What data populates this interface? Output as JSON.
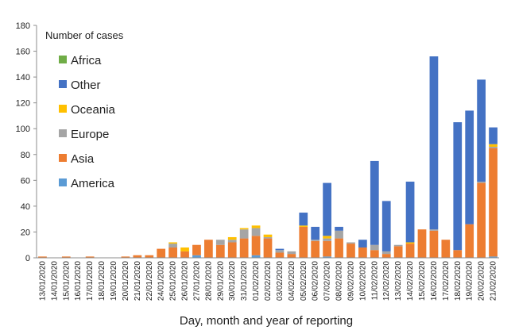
{
  "chart_data": {
    "type": "bar",
    "stacked": true,
    "title": "",
    "xlabel": "Day, month and year of reporting",
    "ylabel": "",
    "ylim": [
      0,
      180
    ],
    "yticks": [
      0,
      20,
      40,
      60,
      80,
      100,
      120,
      140,
      160,
      180
    ],
    "grid": false,
    "legend_title": "Number of cases",
    "legend_position": "top-left",
    "categories": [
      "13/01/2020",
      "14/01/2020",
      "15/01/2020",
      "16/01/2020",
      "17/01/2020",
      "18/01/2020",
      "19/01/2020",
      "20/01/2020",
      "21/01/2020",
      "22/01/2020",
      "24/01/2020",
      "25/01/2020",
      "26/01/2020",
      "27/01/2020",
      "28/01/2020",
      "29/01/2020",
      "30/01/2020",
      "31/01/2020",
      "01/02/2020",
      "02/02/2020",
      "03/02/2020",
      "04/02/2020",
      "05/02/2020",
      "06/02/2020",
      "07/02/2020",
      "08/02/2020",
      "09/02/2020",
      "10/02/2020",
      "11/02/2020",
      "12/02/2020",
      "13/02/2020",
      "14/02/2020",
      "15/02/2020",
      "16/02/2020",
      "17/02/2020",
      "18/02/2020",
      "19/02/2020",
      "20/02/2020",
      "21/02/2020"
    ],
    "series": [
      {
        "name": "America",
        "color": "#5b9bd5",
        "values": [
          0,
          0,
          0,
          0,
          0,
          0,
          0,
          0,
          0,
          0,
          0,
          0,
          0,
          2,
          0,
          0,
          0,
          0,
          2,
          0,
          0,
          0,
          0,
          0,
          1,
          0,
          0,
          0,
          0,
          0,
          0,
          0,
          0,
          0,
          0,
          0,
          0,
          0,
          1
        ]
      },
      {
        "name": "Asia",
        "color": "#ed7d31",
        "values": [
          1,
          0,
          1,
          0,
          1,
          0,
          0,
          1,
          2,
          2,
          7,
          8,
          5,
          8,
          14,
          10,
          12,
          15,
          15,
          15,
          4,
          3,
          24,
          13,
          12,
          15,
          11,
          8,
          6,
          3,
          9,
          11,
          22,
          21,
          14,
          6,
          26,
          58,
          84
        ]
      },
      {
        "name": "Europe",
        "color": "#a5a5a5",
        "values": [
          0,
          0,
          0,
          0,
          0,
          0,
          0,
          0,
          0,
          0,
          0,
          3,
          0,
          0,
          0,
          4,
          2,
          7,
          6,
          1,
          2,
          2,
          0,
          1,
          2,
          6,
          1,
          0,
          4,
          2,
          1,
          0,
          0,
          1,
          0,
          0,
          0,
          1,
          1
        ]
      },
      {
        "name": "Oceania",
        "color": "#ffc000",
        "values": [
          0,
          0,
          0,
          0,
          0,
          0,
          0,
          0,
          0,
          0,
          0,
          1,
          3,
          0,
          0,
          0,
          2,
          1,
          2,
          2,
          0,
          0,
          1,
          0,
          2,
          0,
          0,
          0,
          0,
          0,
          0,
          1,
          0,
          0,
          0,
          0,
          0,
          0,
          2
        ]
      },
      {
        "name": "Other",
        "color": "#4472c4",
        "values": [
          0,
          0,
          0,
          0,
          0,
          0,
          0,
          0,
          0,
          0,
          0,
          0,
          0,
          0,
          0,
          0,
          0,
          0,
          0,
          0,
          1,
          0,
          10,
          10,
          41,
          3,
          0,
          6,
          65,
          39,
          0,
          47,
          0,
          134,
          0,
          99,
          88,
          79,
          13
        ]
      },
      {
        "name": "Africa",
        "color": "#70ad47",
        "values": [
          0,
          0,
          0,
          0,
          0,
          0,
          0,
          0,
          0,
          0,
          0,
          0,
          0,
          0,
          0,
          0,
          0,
          0,
          0,
          0,
          0,
          0,
          0,
          0,
          0,
          0,
          0,
          0,
          0,
          0,
          0,
          0,
          0,
          0,
          0,
          0,
          0,
          0,
          0
        ]
      }
    ],
    "legend_order": [
      "Africa",
      "Other",
      "Oceania",
      "Europe",
      "Asia",
      "America"
    ]
  }
}
